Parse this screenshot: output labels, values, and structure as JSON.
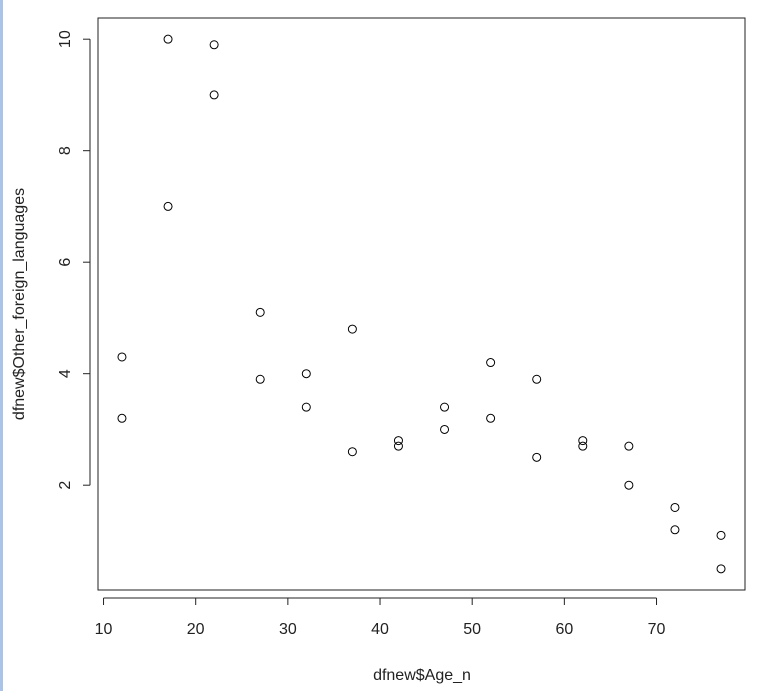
{
  "chart_data": {
    "type": "scatter",
    "x_label": "dfnew$Age_n",
    "y_label": "dfnew$Other_foreign_languages",
    "x": [
      12,
      12,
      17,
      17,
      22,
      22,
      27,
      27,
      32,
      32,
      37,
      37,
      42,
      42,
      47,
      47,
      52,
      52,
      57,
      57,
      62,
      62,
      67,
      67,
      72,
      72,
      77,
      77
    ],
    "values": [
      4.3,
      3.2,
      10,
      7.0,
      9.9,
      9.0,
      5.1,
      3.9,
      4.0,
      3.4,
      4.8,
      2.6,
      2.8,
      2.7,
      3.4,
      3.0,
      4.2,
      3.2,
      3.9,
      2.5,
      2.8,
      2.7,
      2.7,
      2.0,
      1.6,
      1.2,
      1.1,
      0.5
    ],
    "color": "#000000",
    "xlim": [
      9.4,
      79.6
    ],
    "ylim": [
      0.12,
      10.38
    ],
    "xticks": [
      10,
      20,
      30,
      40,
      50,
      60,
      70
    ],
    "yticks": [
      2,
      4,
      6,
      8,
      10
    ]
  }
}
